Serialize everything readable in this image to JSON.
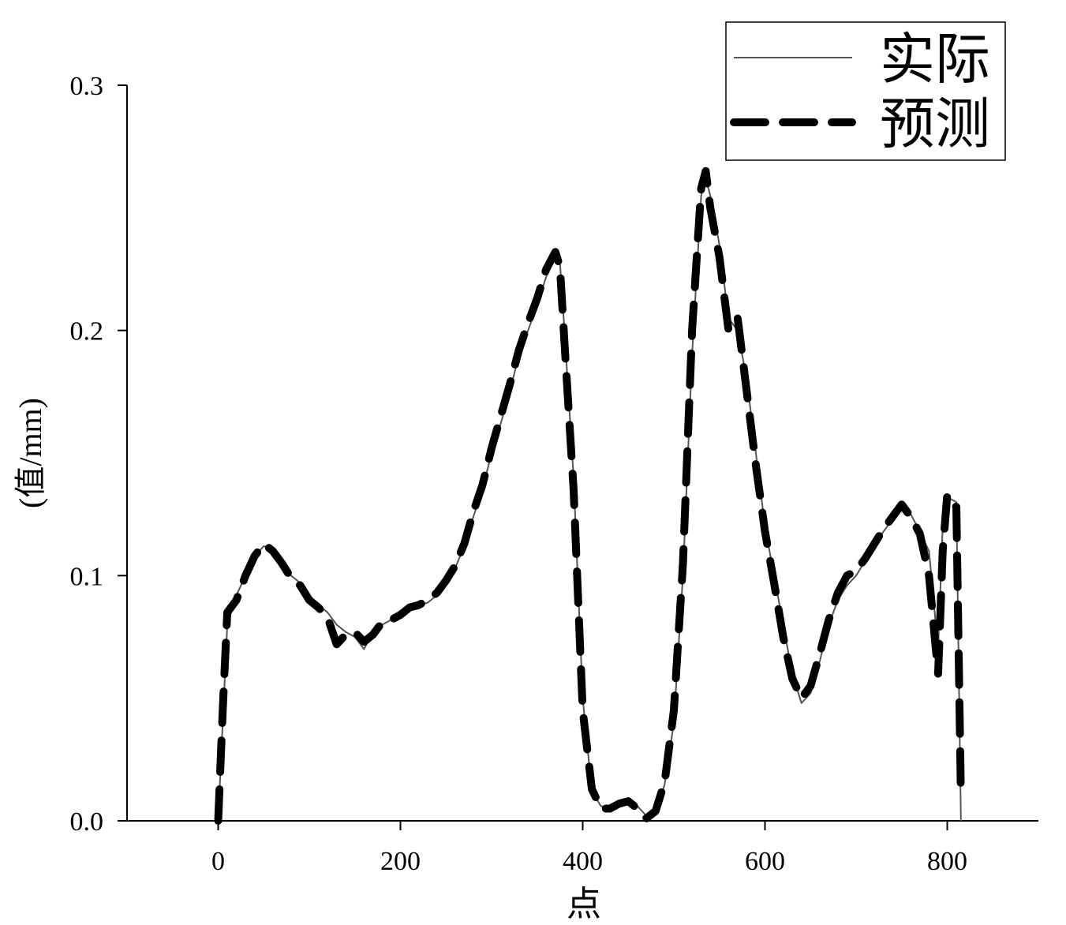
{
  "chart_data": {
    "type": "line",
    "xlabel": "点",
    "ylabel": "(值/mm)",
    "x": [
      0,
      5,
      10,
      20,
      30,
      40,
      50,
      60,
      70,
      80,
      90,
      100,
      110,
      120,
      130,
      140,
      150,
      160,
      170,
      180,
      190,
      200,
      210,
      220,
      230,
      240,
      250,
      260,
      270,
      280,
      290,
      300,
      310,
      320,
      330,
      340,
      350,
      360,
      370,
      375,
      380,
      390,
      400,
      410,
      420,
      430,
      440,
      450,
      460,
      470,
      480,
      490,
      500,
      510,
      520,
      530,
      535,
      540,
      550,
      560,
      570,
      580,
      590,
      600,
      610,
      620,
      630,
      640,
      650,
      660,
      670,
      680,
      690,
      700,
      710,
      720,
      730,
      740,
      750,
      760,
      770,
      780,
      790,
      795,
      800,
      810,
      815
    ],
    "series": [
      {
        "name": "实际",
        "color": "#555555",
        "dash": "solid",
        "values": [
          0,
          0.04,
          0.08,
          0.092,
          0.1,
          0.108,
          0.112,
          0.111,
          0.106,
          0.1,
          0.097,
          0.092,
          0.088,
          0.085,
          0.08,
          0.077,
          0.075,
          0.07,
          0.077,
          0.08,
          0.082,
          0.083,
          0.086,
          0.088,
          0.089,
          0.092,
          0.097,
          0.103,
          0.112,
          0.124,
          0.135,
          0.15,
          0.162,
          0.175,
          0.19,
          0.2,
          0.21,
          0.222,
          0.23,
          0.228,
          0.2,
          0.14,
          0.05,
          0.012,
          0.006,
          0.005,
          0.008,
          0.008,
          0.006,
          0.002,
          0.003,
          0.015,
          0.04,
          0.1,
          0.19,
          0.255,
          0.262,
          0.255,
          0.235,
          0.205,
          0.2,
          0.18,
          0.15,
          0.12,
          0.1,
          0.08,
          0.06,
          0.048,
          0.052,
          0.065,
          0.08,
          0.09,
          0.096,
          0.1,
          0.106,
          0.112,
          0.118,
          0.123,
          0.128,
          0.125,
          0.118,
          0.11,
          0.07,
          0.12,
          0.132,
          0.13,
          0
        ]
      },
      {
        "name": "预测",
        "color": "#000000",
        "dash": "dashed",
        "values": [
          0,
          0.045,
          0.085,
          0.09,
          0.1,
          0.108,
          0.113,
          0.11,
          0.105,
          0.099,
          0.096,
          0.09,
          0.087,
          0.083,
          0.072,
          0.076,
          0.077,
          0.073,
          0.076,
          0.081,
          0.082,
          0.084,
          0.087,
          0.088,
          0.09,
          0.093,
          0.098,
          0.104,
          0.113,
          0.126,
          0.137,
          0.152,
          0.165,
          0.178,
          0.192,
          0.203,
          0.213,
          0.225,
          0.232,
          0.226,
          0.195,
          0.135,
          0.045,
          0.013,
          0.005,
          0.005,
          0.007,
          0.008,
          0.005,
          0.001,
          0.004,
          0.016,
          0.045,
          0.105,
          0.2,
          0.258,
          0.265,
          0.25,
          0.23,
          0.2,
          0.205,
          0.175,
          0.145,
          0.118,
          0.097,
          0.075,
          0.058,
          0.05,
          0.055,
          0.068,
          0.082,
          0.093,
          0.1,
          0.102,
          0.107,
          0.113,
          0.119,
          0.124,
          0.129,
          0.124,
          0.117,
          0.1,
          0.06,
          0.11,
          0.133,
          0.128,
          0.01
        ]
      }
    ],
    "xlim": [
      -100,
      900
    ],
    "xticks": [
      0,
      200,
      400,
      600,
      800
    ],
    "ylim": [
      0,
      0.3
    ],
    "yticks": [
      {
        "value": 0,
        "label": "0.0"
      },
      0.1,
      0.2,
      0.3
    ],
    "legend": "upper right",
    "grid": false
  }
}
